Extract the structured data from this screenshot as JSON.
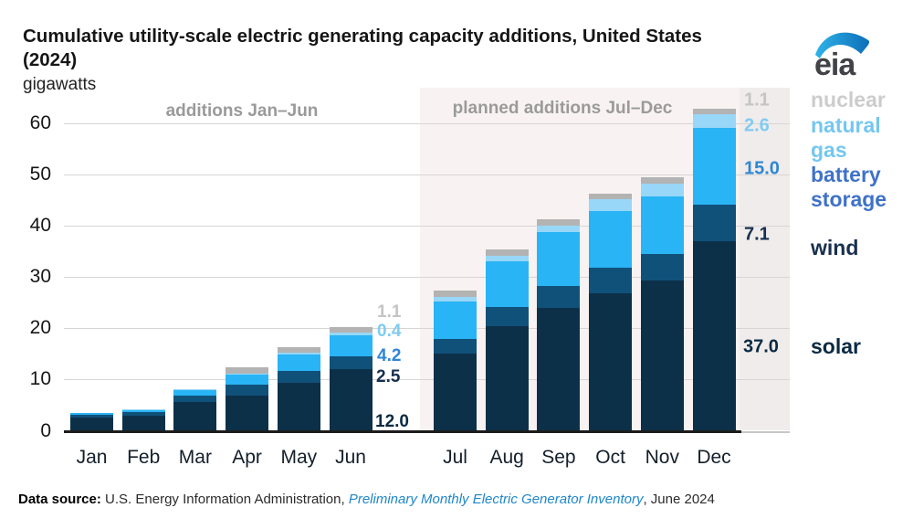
{
  "title": {
    "line1": "Cumulative utility-scale electric generating capacity additions, United States",
    "line2": "(2024)"
  },
  "subtitle": "gigawatts",
  "logo_text": "eia",
  "sections": {
    "left": "additions Jan–Jun",
    "right": "planned additions Jul–Dec"
  },
  "colors": {
    "bar": {
      "solar": "#0d3049",
      "wind": "#10517a",
      "battery": "#29b4f5",
      "gas": "#98d7f7",
      "nuclear": "#b3b3b3"
    },
    "text": {
      "solar": "#0b2a43",
      "wind": "#17304f",
      "battery": "#2e86d4",
      "gas": "#7fcbf2",
      "nuclear": "#c4c4c4"
    },
    "legend": {
      "solar": "#0b2a43",
      "wind": "#19304e",
      "battery": "#3f72c8",
      "gas": "#74c7f0",
      "nuclear": "#cccccc"
    },
    "planned_region_bg": "#f8f3f2",
    "label_column_bg": "#f0eceb",
    "link_blue": "#1f86c9",
    "logo_swoosh": "#1787c9"
  },
  "chart_data": {
    "type": "bar",
    "stacked": true,
    "title": "Cumulative utility-scale electric generating capacity additions, United States (2024)",
    "ylabel": "gigawatts",
    "xlabel": "",
    "ylim": [
      0,
      60
    ],
    "yticks": [
      0,
      10,
      20,
      30,
      40,
      50,
      60
    ],
    "grid": true,
    "categories": [
      "Jan",
      "Feb",
      "Mar",
      "Apr",
      "May",
      "Jun",
      "Jul",
      "Aug",
      "Sep",
      "Oct",
      "Nov",
      "Dec"
    ],
    "series": [
      {
        "name": "solar",
        "color_key": "solar",
        "values": [
          2.6,
          3.0,
          5.6,
          6.8,
          9.3,
          12.0,
          15.0,
          20.4,
          24.0,
          26.8,
          29.3,
          37.0
        ]
      },
      {
        "name": "wind",
        "color_key": "wind",
        "values": [
          0.6,
          0.7,
          1.2,
          2.2,
          2.4,
          2.5,
          3.0,
          3.8,
          4.3,
          5.0,
          5.2,
          7.1
        ]
      },
      {
        "name": "battery storage",
        "color_key": "battery",
        "values": [
          0.3,
          0.3,
          1.2,
          2.0,
          3.2,
          4.2,
          7.2,
          8.9,
          10.5,
          11.1,
          11.2,
          15.0
        ]
      },
      {
        "name": "natural gas",
        "color_key": "gas",
        "values": [
          0.0,
          0.1,
          0.1,
          0.2,
          0.3,
          0.4,
          1.0,
          1.1,
          1.3,
          2.3,
          2.6,
          2.6
        ]
      },
      {
        "name": "nuclear",
        "color_key": "nuclear",
        "values": [
          0.0,
          0.0,
          0.0,
          1.1,
          1.1,
          1.1,
          1.1,
          1.1,
          1.1,
          1.1,
          1.1,
          1.1
        ]
      }
    ],
    "annotations": {
      "jun": {
        "nuclear": "1.1",
        "gas": "0.4",
        "battery": "4.2",
        "wind": "2.5",
        "solar": "12.0"
      },
      "dec": {
        "nuclear": "1.1",
        "gas": "2.6",
        "battery": "15.0",
        "wind": "7.1",
        "solar": "37.0"
      }
    }
  },
  "legend": {
    "nuclear": "nuclear",
    "gas": "natural gas",
    "battery": "battery storage",
    "wind": "wind",
    "solar": "solar"
  },
  "footer": {
    "label": "Data source:",
    "text1": " U.S. Energy Information Administration, ",
    "link": "Preliminary Monthly Electric Generator Inventory",
    "text2": ", June 2024"
  }
}
